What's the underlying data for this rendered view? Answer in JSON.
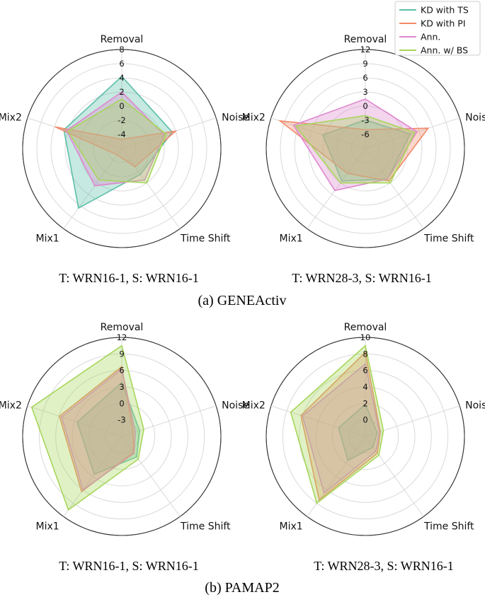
{
  "legend": [
    {
      "name": "KD with TS",
      "color": "#5cbfa8"
    },
    {
      "name": "KD with PI",
      "color": "#f08a6a"
    },
    {
      "name": "Ann.",
      "color": "#de87cd"
    },
    {
      "name": "Ann. w/ BS",
      "color": "#a7d65b"
    }
  ],
  "sections": [
    "(a) GENEActiv",
    "(b) PAMAP2"
  ],
  "chart_data": [
    {
      "type": "radar",
      "caption": "T: WRN16-1, S: WRN16-1",
      "axes": [
        "Removal",
        "Noise",
        "Time Shift",
        "Mix1",
        "Mix2"
      ],
      "ticks": [
        "8",
        "6",
        "4",
        "2",
        "0",
        "-2",
        "-4"
      ],
      "rlim": [
        -6,
        8
      ],
      "series": [
        {
          "name": "KD with TS",
          "values": [
            4.2,
            1.5,
            -1.5,
            4.4,
            2.6
          ]
        },
        {
          "name": "KD with PI",
          "values": [
            -4.7,
            2.0,
            -2.8,
            -4.9,
            3.9
          ]
        },
        {
          "name": "Ann.",
          "values": [
            2.0,
            0.3,
            -0.5,
            0.5,
            2.2
          ]
        },
        {
          "name": "Ann. w/ BS",
          "values": [
            1.0,
            0.6,
            0.0,
            -0.5,
            2.0
          ]
        }
      ]
    },
    {
      "type": "radar",
      "caption": "T: WRN28-3, S: WRN16-1",
      "axes": [
        "Removal",
        "Noise",
        "Time Shift",
        "Mix1",
        "Mix2"
      ],
      "ticks": [
        "12",
        "9",
        "6",
        "3",
        "0",
        "-3",
        "-6"
      ],
      "rlim": [
        -9,
        12
      ],
      "series": [
        {
          "name": "KD with TS",
          "values": [
            -3.0,
            1.0,
            -1.0,
            -0.5,
            0.5
          ]
        },
        {
          "name": "KD with PI",
          "values": [
            -5.0,
            5.0,
            -0.5,
            -2.5,
            10.0
          ]
        },
        {
          "name": "Ann.",
          "values": [
            1.5,
            2.5,
            -1.0,
            2.0,
            7.0
          ]
        },
        {
          "name": "Ann. w/ BS",
          "values": [
            -2.0,
            2.0,
            0.0,
            0.0,
            6.5
          ]
        }
      ]
    },
    {
      "type": "radar",
      "caption": "T: WRN16-1, S: WRN16-1",
      "axes": [
        "Removal",
        "Noise",
        "Time Shift",
        "Mix1",
        "Mix2"
      ],
      "ticks": [
        "12",
        "9",
        "6",
        "3",
        "0",
        "-3"
      ],
      "rlim": [
        -6,
        12
      ],
      "series": [
        {
          "name": "KD with TS",
          "values": [
            3.8,
            -2.6,
            -1.4,
            2.5,
            2.5
          ]
        },
        {
          "name": "KD with PI",
          "values": [
            6.7,
            -3.8,
            -2.4,
            6.4,
            5.9
          ]
        },
        {
          "name": "Ann.",
          "values": [
            6.3,
            -3.4,
            -2.2,
            6.0,
            5.5
          ]
        },
        {
          "name": "Ann. w/ BS",
          "values": [
            10.5,
            -1.8,
            -0.9,
            10.5,
            11.2
          ]
        }
      ]
    },
    {
      "type": "radar",
      "caption": "T: WRN28-3, S: WRN16-1",
      "axes": [
        "Removal",
        "Noise",
        "Time Shift",
        "Mix1",
        "Mix2"
      ],
      "ticks": [
        "10",
        "8",
        "6",
        "4",
        "2",
        "0"
      ],
      "rlim": [
        -2,
        10
      ],
      "series": [
        {
          "name": "KD with TS",
          "values": [
            1.9,
            -0.5,
            -0.4,
            1.6,
            1.4
          ]
        },
        {
          "name": "KD with PI",
          "values": [
            8.2,
            -0.1,
            0.5,
            7.5,
            6.2
          ]
        },
        {
          "name": "Ann.",
          "values": [
            6.8,
            -0.2,
            0.2,
            6.5,
            6.0
          ]
        },
        {
          "name": "Ann. w/ BS",
          "values": [
            9.0,
            0.3,
            0.8,
            8.0,
            7.5
          ]
        }
      ]
    }
  ]
}
